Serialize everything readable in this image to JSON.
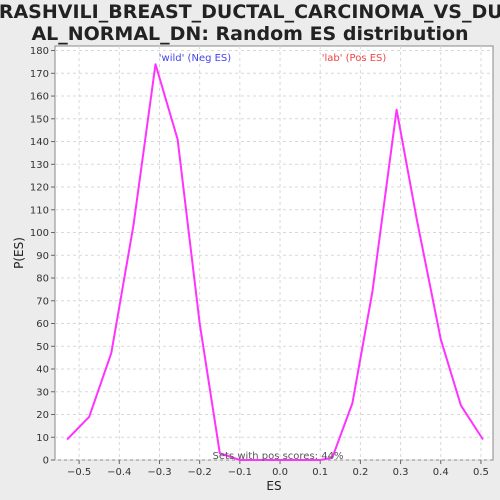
{
  "title_lines": [
    "TURASHVILI_BREAST_DUCTAL_CARCINOMA_VS_DUCT",
    "AL_NORMAL_DN: Random ES distribution"
  ],
  "colors": {
    "line": "#ff33ff",
    "neg_label": "#4444ee",
    "pos_label": "#ee4444",
    "footnote": "#555555",
    "grid": "#d8d8d8",
    "plot_bg": "#ffffff",
    "page_bg": "#ececec"
  },
  "chart_data": {
    "type": "line",
    "title": "TURASHVILI_BREAST_DUCTAL_CARCINOMA_VS_DUCTAL_NORMAL_DN: Random ES distribution",
    "xlabel": "ES",
    "ylabel": "P(ES)",
    "xlim": [
      -0.56,
      0.53
    ],
    "ylim": [
      0,
      182
    ],
    "x_ticks": [
      -0.5,
      -0.4,
      -0.3,
      -0.2,
      -0.1,
      0.0,
      0.1,
      0.2,
      0.3,
      0.4,
      0.5
    ],
    "x_tick_labels": [
      "−0.5",
      "−0.4",
      "−0.3",
      "−0.2",
      "−0.1",
      "0.0",
      "0.1",
      "0.2",
      "0.3",
      "0.4",
      "0.5"
    ],
    "y_ticks": [
      0,
      10,
      20,
      30,
      40,
      50,
      60,
      70,
      80,
      90,
      100,
      110,
      120,
      130,
      140,
      150,
      160,
      170,
      180
    ],
    "grid": true,
    "series": [
      {
        "x": [
          -0.53,
          -0.475,
          -0.42,
          -0.365,
          -0.31,
          -0.255,
          -0.2,
          -0.15,
          -0.1,
          -0.05,
          0.0,
          0.05,
          0.1,
          0.13,
          0.18,
          0.23,
          0.29,
          0.34,
          0.4,
          0.45,
          0.505
        ],
        "values": [
          9,
          19,
          47,
          103,
          174,
          141,
          60,
          3,
          0,
          0,
          0,
          0,
          0,
          1,
          25,
          74,
          154,
          106,
          53,
          24,
          9
        ]
      }
    ],
    "annotations": {
      "neg": "'wild' (Neg ES)",
      "pos": "'lab' (Pos ES)",
      "footnote": "Sets with pos scores: 44%"
    }
  }
}
